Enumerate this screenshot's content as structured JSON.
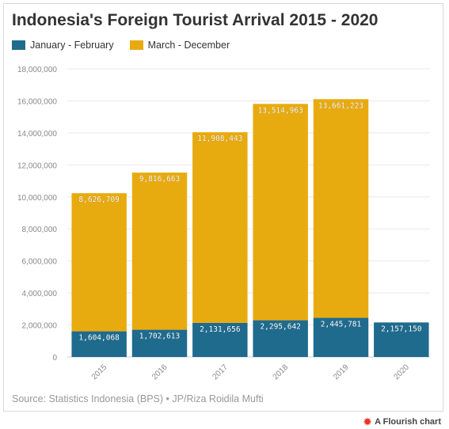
{
  "title": "Indonesia's Foreign Tourist Arrival 2015 - 2020",
  "source": "Source: Statistics Indonesia (BPS) • JP/Riza Roidila Mufti",
  "footer": {
    "label": "A Flourish chart",
    "icon": "flourish-logo-icon"
  },
  "colors": {
    "jan_feb": "#1f6b8e",
    "mar_dec": "#e8ab0f",
    "grid": "#e8e8e8",
    "axis_text": "#888888"
  },
  "chart_data": {
    "type": "bar",
    "stacked": true,
    "title": "Indonesia's Foreign Tourist Arrival 2015 - 2020",
    "categories": [
      "2015",
      "2016",
      "2017",
      "2018",
      "2019",
      "2020"
    ],
    "series": [
      {
        "name": "January - February",
        "values": [
          1604068,
          1702613,
          2131656,
          2295642,
          2445781,
          2157150
        ],
        "labels": [
          "1,604,068",
          "1,702,613",
          "2,131,656",
          "2,295,642",
          "2,445,781",
          "2,157,150"
        ]
      },
      {
        "name": "March - December",
        "values": [
          8626709,
          9816663,
          11908443,
          13514963,
          13661223,
          null
        ],
        "labels": [
          "8,626,709",
          "9,816,663",
          "11,908,443",
          "13,514,963",
          "13,661,223",
          ""
        ]
      }
    ],
    "yticks": [
      0,
      2000000,
      4000000,
      6000000,
      8000000,
      10000000,
      12000000,
      14000000,
      16000000,
      18000000
    ],
    "ytick_labels": [
      "0",
      "2,000,000",
      "4,000,000",
      "6,000,000",
      "8,000,000",
      "10,000,000",
      "12,000,000",
      "14,000,000",
      "16,000,000",
      "18,000,000"
    ],
    "ylim": [
      0,
      18000000
    ],
    "legend": "top-left",
    "grid": true
  }
}
